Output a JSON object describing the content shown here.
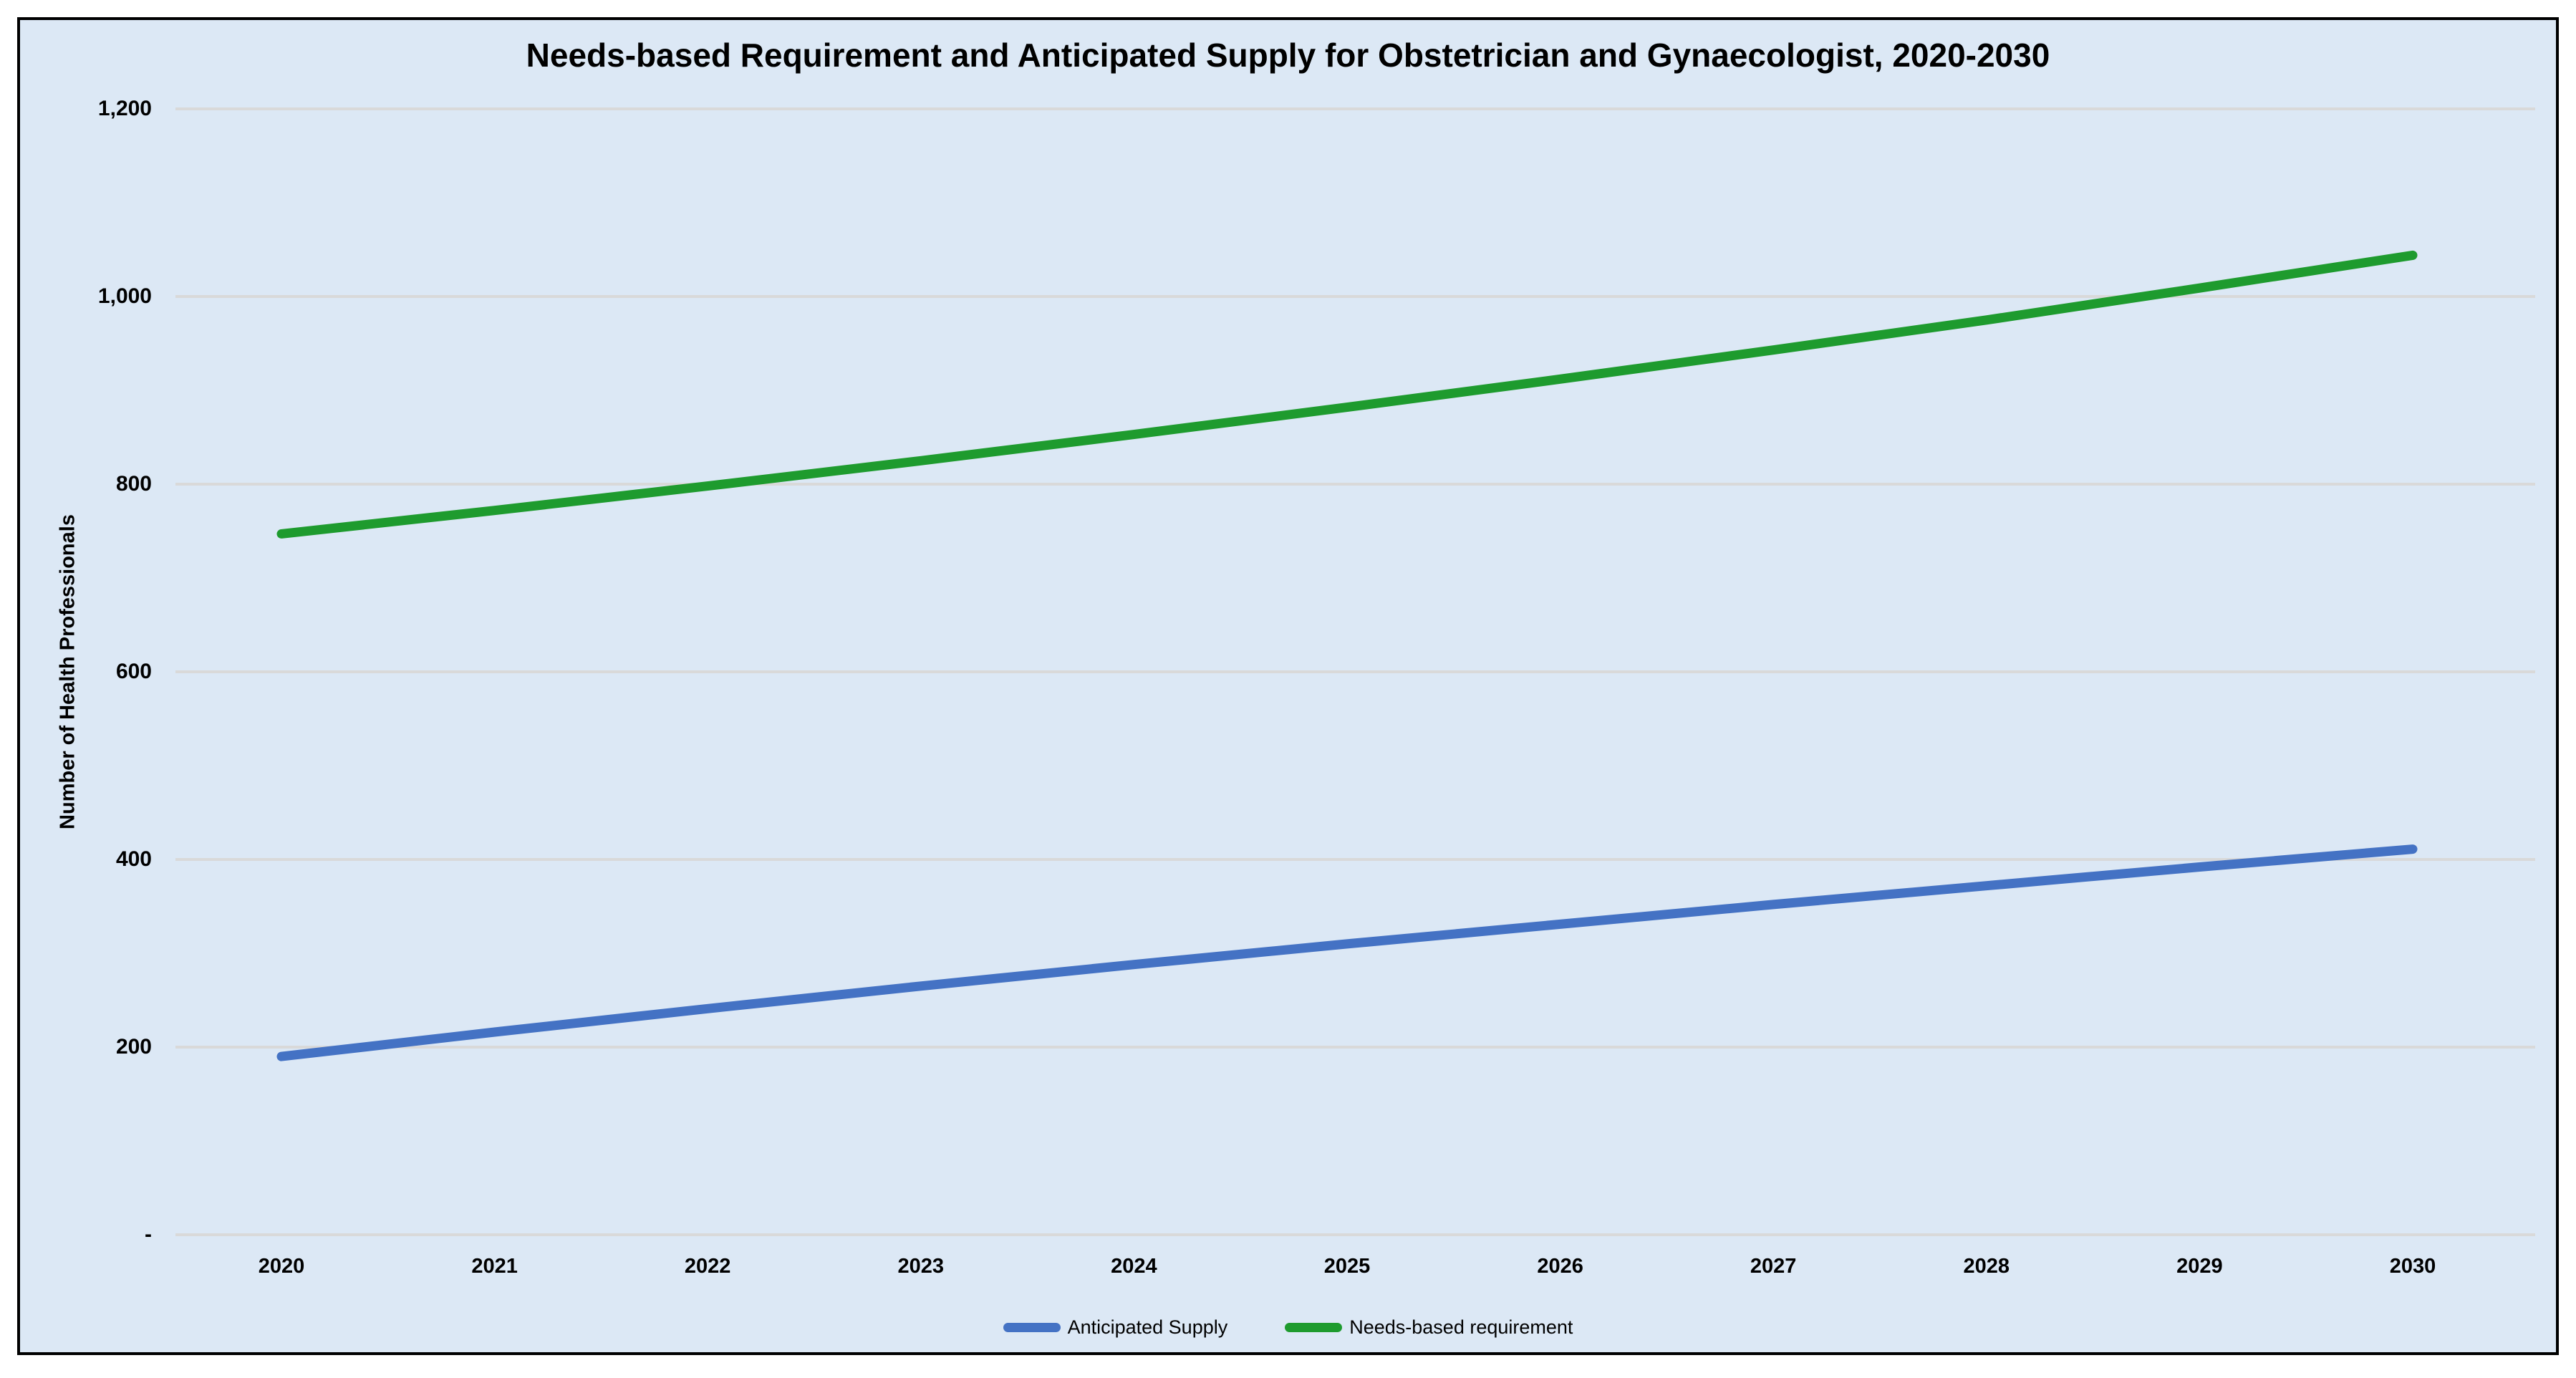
{
  "chart_data": {
    "type": "line",
    "title": "Needs-based Requirement and Anticipated Supply for Obstetrician and Gynaecologist, 2020-2030",
    "xlabel": "",
    "ylabel": "Number of Health Professionals",
    "x": [
      2020,
      2021,
      2022,
      2023,
      2024,
      2025,
      2026,
      2027,
      2028,
      2029,
      2030
    ],
    "series": [
      {
        "name": "Anticipated Supply",
        "color": "#4472C4",
        "values": [
          190,
          216,
          241,
          265,
          288,
          310,
          331,
          352,
          372,
          392,
          411
        ]
      },
      {
        "name": "Needs-based requirement",
        "color": "#1E9B2E",
        "values": [
          747,
          772,
          798,
          825,
          853,
          882,
          912,
          943,
          975,
          1009,
          1044
        ]
      }
    ],
    "ylim": [
      0,
      1200
    ],
    "y_tick_interval": 200,
    "y_ticks": [
      "-",
      "200",
      "400",
      "600",
      "800",
      "1,000",
      "1,200"
    ],
    "grid": true,
    "legend_position": "bottom",
    "background_color": "#dce8f5",
    "gridline_color": "#d9d9d9",
    "frame_border_color": "#000000"
  }
}
